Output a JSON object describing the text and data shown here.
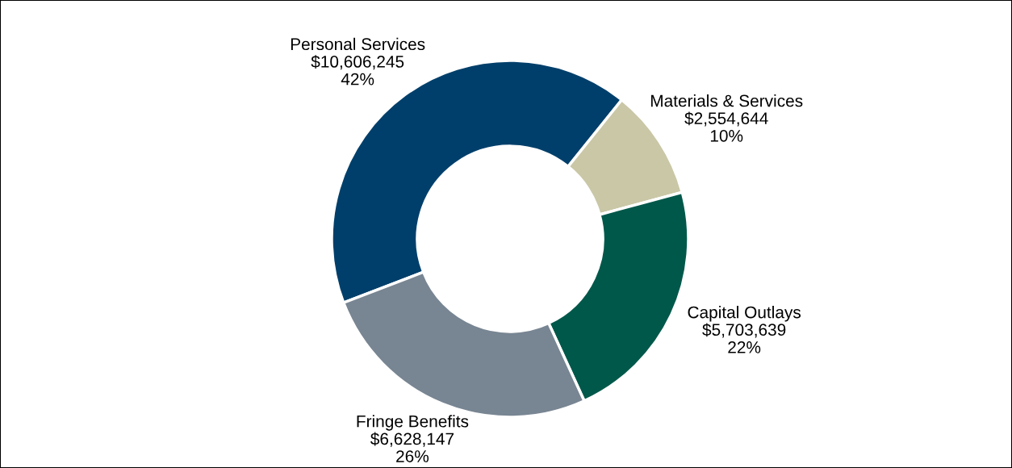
{
  "chart_data": {
    "type": "donut",
    "categories": [
      "Personal Services",
      "Materials & Services",
      "Capital Outlays",
      "Fringe Benefits"
    ],
    "values": [
      10606245,
      2554644,
      5703639,
      6628147
    ],
    "value_labels": [
      "$10,606,245\n42%",
      "$2,554,644\n10%",
      "$5,703,639\n22%",
      "$6,628,147\n26%"
    ],
    "colors": [
      "#003f6b",
      "#c9c7a6",
      "#00584a",
      "#788592"
    ],
    "legend": false
  }
}
